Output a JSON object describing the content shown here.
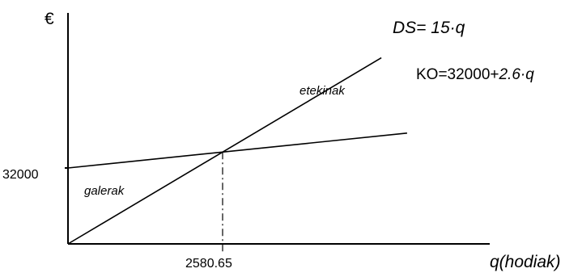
{
  "chart_data": {
    "type": "line",
    "ylabel": "€",
    "xlabel": "q(hodiak)",
    "xlim": [
      0,
      5500
    ],
    "ylim": [
      0,
      88000
    ],
    "series": [
      {
        "name": "DS",
        "label_main": "DS= 15·q",
        "x": [
          0,
          5230
        ],
        "y": [
          0,
          78450
        ]
      },
      {
        "name": "KO",
        "label_prefix": "KO=32000+",
        "label_suffix": "2.6·q",
        "x": [
          0,
          5660
        ],
        "y": [
          32000,
          46716
        ]
      }
    ],
    "break_even": {
      "x": 2580.65,
      "y": 38709.75
    },
    "tick_labels": {
      "y": "32000",
      "x": "2580.65"
    },
    "annotations": {
      "loss": "galerak",
      "profit": "etekinak"
    }
  }
}
